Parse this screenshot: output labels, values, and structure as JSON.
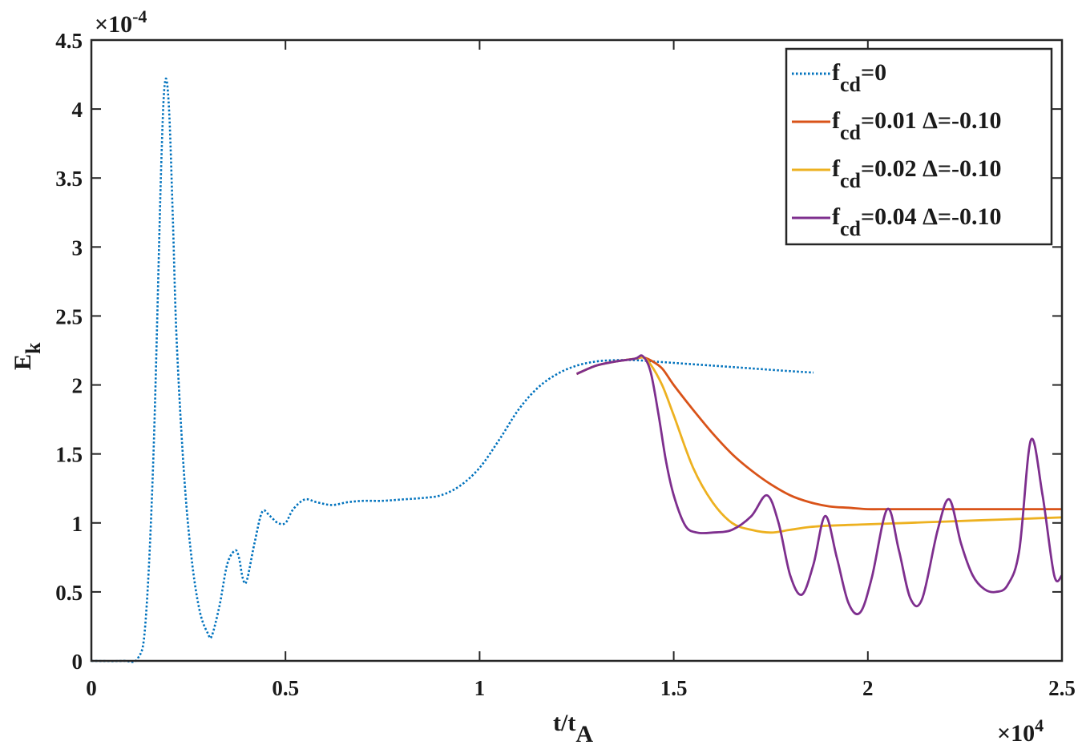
{
  "chart_data": {
    "type": "line",
    "xlabel": "t/t",
    "xlabel_sub": "A",
    "ylabel": "E",
    "ylabel_sub": "k",
    "x_multiplier": "×10",
    "x_multiplier_exp": "4",
    "y_multiplier": "×10",
    "y_multiplier_exp": "-4",
    "xlim": [
      0,
      2.5
    ],
    "ylim": [
      0,
      4.5
    ],
    "xticks": [
      0,
      0.5,
      1,
      1.5,
      2,
      2.5
    ],
    "xtick_labels": [
      "0",
      "0.5",
      "1",
      "1.5",
      "2",
      "2.5"
    ],
    "yticks": [
      0,
      0.5,
      1,
      1.5,
      2,
      2.5,
      3,
      3.5,
      4,
      4.5
    ],
    "ytick_labels": [
      "0",
      "0.5",
      "1",
      "1.5",
      "2",
      "2.5",
      "3",
      "3.5",
      "4",
      "4.5"
    ],
    "grid": false,
    "legend_position": "top-right",
    "series": [
      {
        "label_main": "f",
        "label_sub": "cd",
        "label_rest": "=0",
        "color": "#0072BD",
        "dash": "dotted",
        "x": [
          0,
          0.08,
          0.12,
          0.14,
          0.16,
          0.18,
          0.19,
          0.2,
          0.21,
          0.22,
          0.24,
          0.26,
          0.28,
          0.3,
          0.31,
          0.33,
          0.35,
          0.37,
          0.38,
          0.39,
          0.4,
          0.42,
          0.44,
          0.46,
          0.48,
          0.5,
          0.52,
          0.55,
          0.58,
          0.62,
          0.66,
          0.7,
          0.75,
          0.8,
          0.85,
          0.9,
          0.95,
          1.0,
          1.05,
          1.1,
          1.15,
          1.2,
          1.25,
          1.3,
          1.35,
          1.4,
          1.45,
          1.5,
          1.6,
          1.7,
          1.8,
          1.86
        ],
        "y": [
          0,
          0,
          0.02,
          0.3,
          1.5,
          3.6,
          4.2,
          4.0,
          3.2,
          2.3,
          1.3,
          0.7,
          0.35,
          0.2,
          0.18,
          0.4,
          0.7,
          0.8,
          0.75,
          0.6,
          0.58,
          0.85,
          1.08,
          1.05,
          1.0,
          1.0,
          1.1,
          1.17,
          1.15,
          1.13,
          1.15,
          1.16,
          1.16,
          1.17,
          1.18,
          1.2,
          1.27,
          1.4,
          1.6,
          1.82,
          1.98,
          2.08,
          2.14,
          2.17,
          2.18,
          2.18,
          2.17,
          2.16,
          2.14,
          2.12,
          2.1,
          2.09
        ]
      },
      {
        "label_main": "f",
        "label_sub": "cd",
        "label_rest": "=0.01  Δ=-0.10",
        "color": "#D95319",
        "dash": "solid",
        "x": [
          1.25,
          1.3,
          1.35,
          1.4,
          1.42,
          1.44,
          1.47,
          1.5,
          1.55,
          1.6,
          1.65,
          1.7,
          1.75,
          1.8,
          1.85,
          1.9,
          1.95,
          2.0,
          2.05,
          2.1,
          2.2,
          2.3,
          2.4,
          2.5
        ],
        "y": [
          2.08,
          2.14,
          2.17,
          2.19,
          2.2,
          2.18,
          2.12,
          2.0,
          1.82,
          1.65,
          1.5,
          1.38,
          1.28,
          1.2,
          1.15,
          1.12,
          1.11,
          1.1,
          1.1,
          1.1,
          1.1,
          1.1,
          1.1,
          1.1
        ]
      },
      {
        "label_main": "f",
        "label_sub": "cd",
        "label_rest": "=0.02  Δ=-0.10",
        "color": "#EDB120",
        "dash": "solid",
        "x": [
          1.25,
          1.3,
          1.35,
          1.4,
          1.42,
          1.44,
          1.47,
          1.5,
          1.55,
          1.6,
          1.65,
          1.7,
          1.75,
          1.8,
          1.85,
          1.9,
          2.0,
          2.1,
          2.2,
          2.3,
          2.4,
          2.5
        ],
        "y": [
          2.08,
          2.14,
          2.17,
          2.19,
          2.2,
          2.15,
          2.0,
          1.78,
          1.4,
          1.15,
          1.0,
          0.95,
          0.93,
          0.95,
          0.97,
          0.98,
          0.99,
          1.0,
          1.01,
          1.02,
          1.03,
          1.04
        ]
      },
      {
        "label_main": "f",
        "label_sub": "cd",
        "label_rest": "=0.04  Δ=-0.10",
        "color": "#7E2F8E",
        "dash": "solid",
        "x": [
          1.25,
          1.3,
          1.35,
          1.4,
          1.42,
          1.44,
          1.46,
          1.48,
          1.5,
          1.53,
          1.56,
          1.6,
          1.65,
          1.7,
          1.74,
          1.77,
          1.8,
          1.83,
          1.86,
          1.89,
          1.92,
          1.95,
          1.98,
          2.01,
          2.05,
          2.08,
          2.11,
          2.14,
          2.18,
          2.21,
          2.24,
          2.27,
          2.3,
          2.33,
          2.36,
          2.39,
          2.42,
          2.45,
          2.48,
          2.5
        ],
        "y": [
          2.08,
          2.14,
          2.17,
          2.19,
          2.21,
          2.1,
          1.8,
          1.45,
          1.2,
          0.98,
          0.93,
          0.93,
          0.95,
          1.05,
          1.2,
          1.0,
          0.62,
          0.48,
          0.7,
          1.05,
          0.75,
          0.42,
          0.35,
          0.6,
          1.1,
          0.8,
          0.45,
          0.45,
          0.95,
          1.17,
          0.85,
          0.62,
          0.52,
          0.5,
          0.55,
          0.8,
          1.6,
          1.2,
          0.62,
          0.62
        ]
      }
    ]
  }
}
